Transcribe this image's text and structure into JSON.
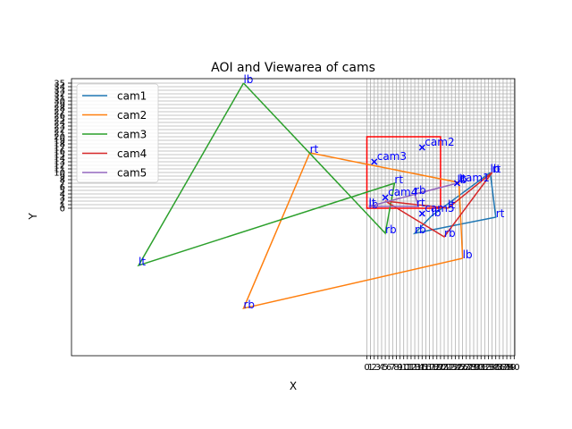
{
  "chart_data": {
    "type": "line",
    "title": "AOI and Viewarea of cams",
    "xlabel": "X",
    "ylabel": "Y",
    "x_ticks": [
      "0",
      "1",
      "2",
      "3",
      "4",
      "5",
      "6",
      "7",
      "8",
      "9",
      "10",
      "11",
      "12",
      "13",
      "14",
      "15",
      "16",
      "17",
      "18",
      "19",
      "20",
      "21",
      "22",
      "23",
      "24",
      "25",
      "26",
      "27",
      "28",
      "29",
      "30",
      "31",
      "32",
      "33",
      "34",
      "35",
      "36",
      "37",
      "38",
      "39",
      "40"
    ],
    "y_ticks": [
      "0",
      "1",
      "2",
      "3",
      "4",
      "5",
      "6",
      "7",
      "8",
      "9",
      "10",
      "11",
      "12",
      "13",
      "14",
      "15",
      "16",
      "17",
      "18",
      "19",
      "20",
      "21",
      "22",
      "23",
      "24",
      "25",
      "26",
      "27",
      "28",
      "29",
      "30",
      "31",
      "32",
      "33",
      "34",
      "35"
    ],
    "grid": true,
    "legend_position": "upper left",
    "aoi_color": "#ff0000",
    "series": [
      {
        "name": "cam1",
        "color": "#1f77b4",
        "quad": [
          [
            33.5,
            10
          ],
          [
            17.5,
            -2.2
          ],
          [
            13,
            -7
          ],
          [
            35,
            -2.5
          ]
        ],
        "labels": [
          {
            "text": "lb",
            "x": 33.5,
            "y": 10
          },
          {
            "text": "lb",
            "x": 17.5,
            "y": -2.2
          },
          {
            "text": "rb",
            "x": 13,
            "y": -7
          },
          {
            "text": "rt",
            "x": 35,
            "y": -2.5
          }
        ]
      },
      {
        "name": "cam2",
        "color": "#ff7f0e",
        "quad": [
          [
            26,
            -14
          ],
          [
            -33.5,
            -28
          ],
          [
            -15.5,
            15.5
          ],
          [
            25,
            7.2
          ]
        ],
        "labels": [
          {
            "text": "lb",
            "x": 26,
            "y": -14
          },
          {
            "text": "rb",
            "x": -33.5,
            "y": -28
          },
          {
            "text": "rt",
            "x": -15.5,
            "y": 15.5
          },
          {
            "text": "lt",
            "x": 25,
            "y": 7.2
          }
        ]
      },
      {
        "name": "cam3",
        "color": "#2ca02c",
        "quad": [
          [
            -33.5,
            35
          ],
          [
            -62,
            -16
          ],
          [
            7.5,
            7
          ],
          [
            5,
            -7
          ]
        ],
        "labels": [
          {
            "text": "lb",
            "x": -33.5,
            "y": 35
          },
          {
            "text": "lt",
            "x": -62,
            "y": -16
          },
          {
            "text": "rt",
            "x": 7.5,
            "y": 7
          },
          {
            "text": "rb",
            "x": 5,
            "y": -7
          }
        ]
      },
      {
        "name": "cam4",
        "color": "#d62728",
        "quad": [
          [
            22,
            0
          ],
          [
            34,
            10
          ],
          [
            21,
            -8
          ],
          [
            5,
            2
          ]
        ],
        "labels": [
          {
            "text": "lt",
            "x": 22,
            "y": 0
          },
          {
            "text": "rt",
            "x": 34,
            "y": 10
          },
          {
            "text": "rb",
            "x": 21,
            "y": -8
          },
          {
            "text": "lb",
            "x": 0.5,
            "y": 0
          }
        ]
      },
      {
        "name": "cam5",
        "color": "#9467bd",
        "quad": [
          [
            24.5,
            7
          ],
          [
            13,
            4
          ],
          [
            14,
            0.5
          ],
          [
            0.5,
            0.5
          ]
        ],
        "labels": [
          {
            "text": "lb",
            "x": 24.5,
            "y": 7
          },
          {
            "text": "rb",
            "x": 13,
            "y": 4
          },
          {
            "text": "rt",
            "x": 13.5,
            "y": 0.5
          },
          {
            "text": "lt",
            "x": 0.5,
            "y": 0.5
          }
        ]
      }
    ],
    "cameras": [
      {
        "name": "cam1",
        "x": 24.5,
        "y": 7
      },
      {
        "name": "cam2",
        "x": 15,
        "y": 17
      },
      {
        "name": "cam3",
        "x": 2,
        "y": 13
      },
      {
        "name": "cam4",
        "x": 5,
        "y": 3
      },
      {
        "name": "cam5",
        "x": 15,
        "y": -1.5
      }
    ]
  }
}
